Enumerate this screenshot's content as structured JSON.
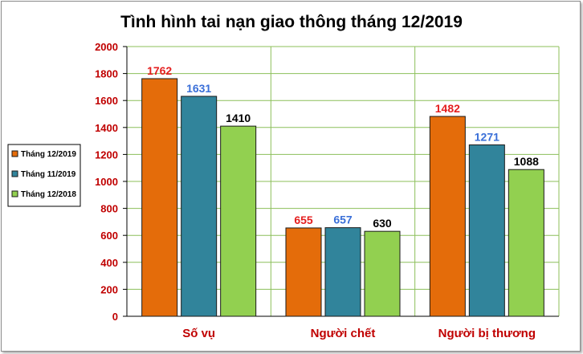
{
  "chart_data": {
    "type": "bar",
    "title": "Tình hình tai nạn giao thông tháng 12/2019",
    "xlabel": "",
    "ylabel": "",
    "categories": [
      "Số vụ",
      "Người chết",
      "Người bị thương"
    ],
    "series": [
      {
        "name": "Tháng 12/2019",
        "values": [
          1762,
          655,
          1482
        ],
        "color": "#e46c0a",
        "label_color": "#e41e1e"
      },
      {
        "name": "Tháng 11/2019",
        "values": [
          1631,
          657,
          1271
        ],
        "color": "#31849b",
        "label_color": "#3a6fd8"
      },
      {
        "name": "Tháng 12/2018",
        "values": [
          1410,
          630,
          1088
        ],
        "color": "#92d050",
        "label_color": "#000000"
      }
    ],
    "ylim": [
      0,
      2000
    ],
    "yticks": [
      0,
      200,
      400,
      600,
      800,
      1000,
      1200,
      1400,
      1600,
      1800,
      2000
    ],
    "grid": true,
    "legend_position": "left",
    "colors": {
      "tick_label": "#c00000",
      "grid": "#8cbf5a"
    }
  }
}
